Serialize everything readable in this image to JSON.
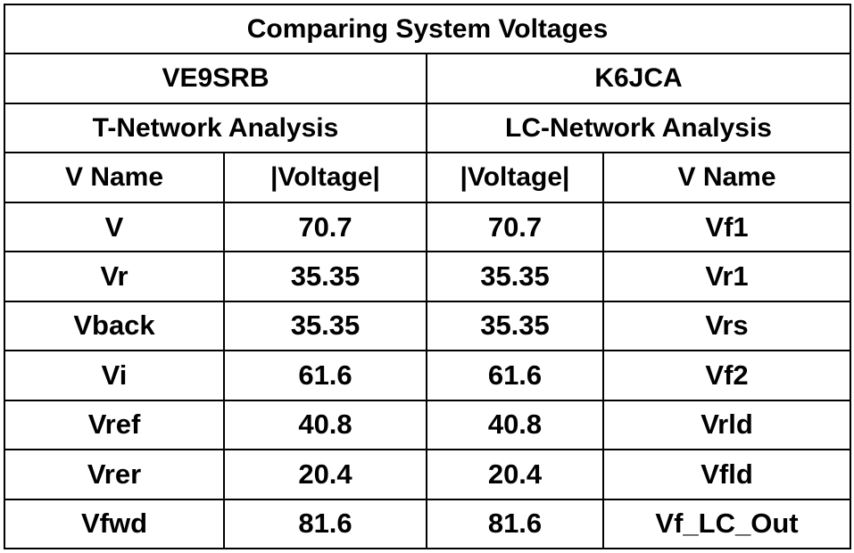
{
  "title": "Comparing System Voltages",
  "left": {
    "source": "VE9SRB",
    "analysis": "T-Network Analysis",
    "col_name": "V Name",
    "col_voltage": "|Voltage|"
  },
  "right": {
    "source": "K6JCA",
    "analysis": "LC-Network Analysis",
    "col_voltage": "|Voltage|",
    "col_name": "V Name"
  },
  "rows": [
    {
      "left_name": "V",
      "left_voltage": "70.7",
      "right_voltage": "70.7",
      "right_name": "Vf1"
    },
    {
      "left_name": "Vr",
      "left_voltage": "35.35",
      "right_voltage": "35.35",
      "right_name": "Vr1"
    },
    {
      "left_name": "Vback",
      "left_voltage": "35.35",
      "right_voltage": "35.35",
      "right_name": "Vrs"
    },
    {
      "left_name": "Vi",
      "left_voltage": "61.6",
      "right_voltage": "61.6",
      "right_name": "Vf2"
    },
    {
      "left_name": "Vref",
      "left_voltage": "40.8",
      "right_voltage": "40.8",
      "right_name": "Vrld"
    },
    {
      "left_name": "Vrer",
      "left_voltage": "20.4",
      "right_voltage": "20.4",
      "right_name": "Vfld"
    },
    {
      "left_name": "Vfwd",
      "left_voltage": "81.6",
      "right_voltage": "81.6",
      "right_name": "Vf_LC_Out"
    }
  ]
}
